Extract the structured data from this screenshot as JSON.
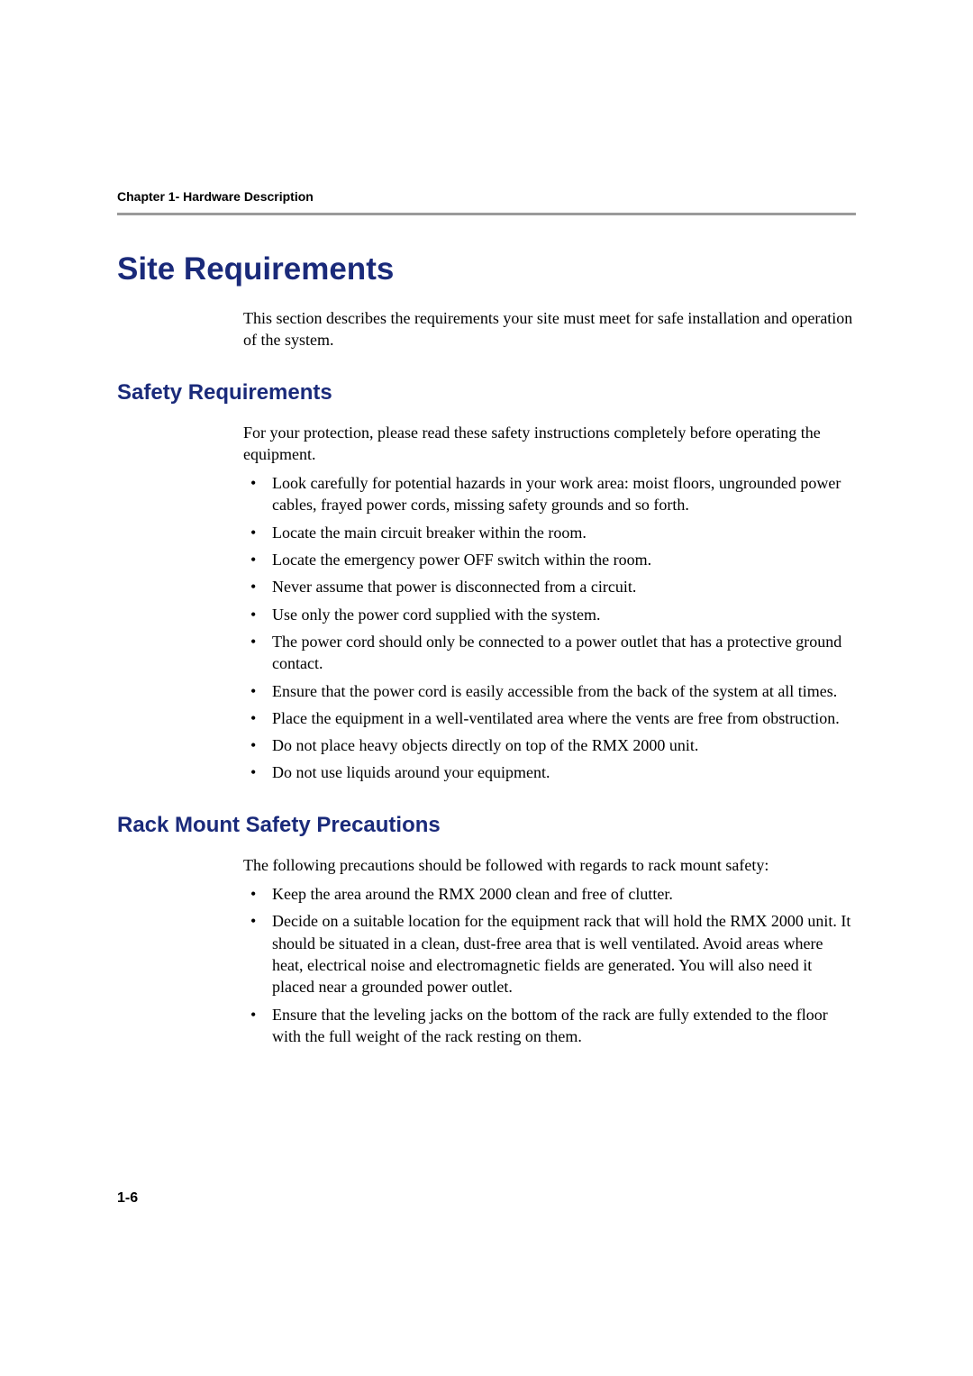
{
  "header": {
    "running": "Chapter 1- Hardware Description"
  },
  "colors": {
    "heading": "#1a2a7a",
    "rule": "#9a9a9a",
    "text": "#000000",
    "background": "#ffffff"
  },
  "sections": {
    "title": "Site Requirements",
    "intro": "This section describes the requirements your site must meet for safe installation and operation of the system.",
    "safety": {
      "heading": "Safety Requirements",
      "intro": "For your protection, please read these safety instructions completely before operating the equipment.",
      "items": [
        "Look carefully for potential hazards in your work area: moist floors, ungrounded power cables, frayed power cords, missing safety grounds and so forth.",
        "Locate the main circuit breaker within the room.",
        "Locate the emergency power OFF switch within the room.",
        "Never assume that power is disconnected from a circuit.",
        "Use only the power cord supplied with the system.",
        "The power cord should only be connected to a power outlet that has a protective ground contact.",
        "Ensure that the power cord is easily accessible from the back of the system at all times.",
        "Place the equipment in a well-ventilated area where the vents are free from obstruction.",
        "Do not place heavy objects directly on top of the RMX 2000 unit.",
        "Do not use liquids around your equipment."
      ]
    },
    "rack": {
      "heading": "Rack Mount Safety Precautions",
      "intro": "The following precautions should be followed with regards to rack mount safety:",
      "items": [
        "Keep the area around the RMX 2000 clean and free of clutter.",
        "Decide on a suitable location for the equipment rack that will hold the RMX 2000 unit. It should be situated in a clean, dust-free area that is well ventilated. Avoid areas where heat, electrical noise and electromagnetic fields are generated. You will also need it placed near a grounded power outlet.",
        "Ensure that the leveling jacks on the bottom of the rack are fully extended to the floor with the full weight of the rack resting on them."
      ]
    }
  },
  "pageNumber": "1-6"
}
